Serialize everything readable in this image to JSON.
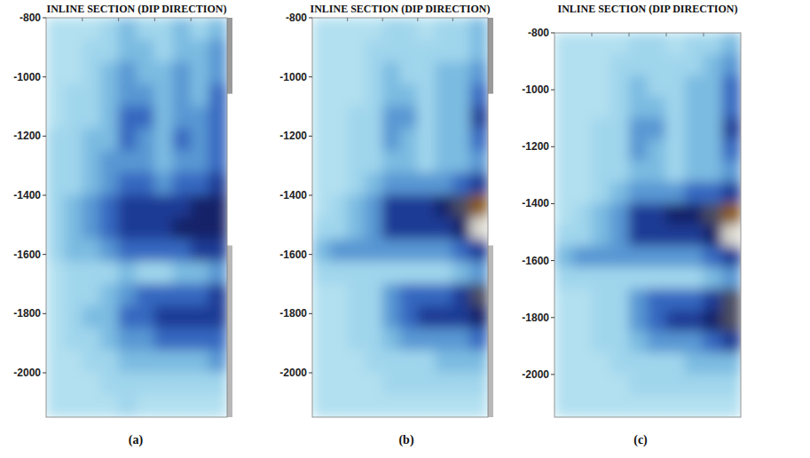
{
  "chart_data": [
    {
      "type": "heatmap",
      "title": "INLINE SECTION (DIP DIRECTION)",
      "panel_label": "(a)",
      "ylim": [
        -2150,
        -800
      ],
      "yticks": [
        -800,
        -1000,
        -1200,
        -1400,
        -1600,
        -1800,
        -2000
      ],
      "tick_labels": "y",
      "zlim": [
        0,
        10
      ],
      "y_edges": [
        -800,
        -875,
        -950,
        -1025,
        -1100,
        -1175,
        -1250,
        -1325,
        -1400,
        -1475,
        -1550,
        -1625,
        -1700,
        -1775,
        -1850,
        -1925,
        -2000,
        -2075,
        -2150
      ],
      "cells": [
        [
          1,
          1,
          1,
          2,
          3,
          2,
          2,
          3,
          2,
          3
        ],
        [
          1,
          1,
          2,
          2,
          3,
          3,
          2,
          3,
          3,
          4
        ],
        [
          1,
          1,
          2,
          3,
          4,
          3,
          3,
          4,
          3,
          4
        ],
        [
          1,
          2,
          2,
          3,
          4,
          4,
          3,
          4,
          3,
          5
        ],
        [
          1,
          2,
          2,
          3,
          5,
          5,
          3,
          4,
          4,
          5
        ],
        [
          2,
          2,
          3,
          3,
          5,
          4,
          3,
          5,
          4,
          5
        ],
        [
          2,
          2,
          3,
          4,
          4,
          4,
          3,
          4,
          4,
          5
        ],
        [
          2,
          2,
          3,
          4,
          5,
          5,
          4,
          5,
          5,
          6
        ],
        [
          2,
          3,
          4,
          5,
          6,
          6,
          6,
          6,
          7,
          7
        ],
        [
          2,
          3,
          4,
          5,
          6,
          6,
          6,
          7,
          7,
          7
        ],
        [
          2,
          3,
          3,
          4,
          5,
          5,
          5,
          5,
          6,
          6
        ],
        [
          1,
          2,
          2,
          2,
          3,
          2,
          2,
          3,
          3,
          4
        ],
        [
          1,
          2,
          2,
          3,
          4,
          5,
          5,
          5,
          5,
          6
        ],
        [
          1,
          2,
          3,
          3,
          5,
          5,
          6,
          6,
          6,
          6
        ],
        [
          1,
          2,
          2,
          3,
          4,
          4,
          5,
          5,
          5,
          5
        ],
        [
          1,
          1,
          2,
          2,
          3,
          3,
          3,
          3,
          3,
          4
        ],
        [
          1,
          1,
          1,
          2,
          2,
          2,
          2,
          2,
          2,
          2
        ],
        [
          1,
          1,
          1,
          1,
          2,
          1,
          1,
          1,
          1,
          1
        ]
      ]
    },
    {
      "type": "heatmap",
      "title": "INLINE SECTION (DIP DIRECTION)",
      "panel_label": "(b)",
      "ylim": [
        -2150,
        -800
      ],
      "yticks": [
        -800,
        -1000,
        -1200,
        -1400,
        -1600,
        -1800,
        -2000
      ],
      "tick_labels": "y",
      "zlim": [
        0,
        10
      ],
      "y_edges": [
        -800,
        -875,
        -950,
        -1025,
        -1100,
        -1175,
        -1250,
        -1325,
        -1400,
        -1475,
        -1550,
        -1625,
        -1700,
        -1775,
        -1850,
        -1925,
        -2000,
        -2075,
        -2150
      ],
      "cells": [
        [
          1,
          1,
          1,
          1,
          2,
          2,
          1,
          2,
          2,
          3
        ],
        [
          1,
          1,
          1,
          2,
          2,
          2,
          2,
          2,
          2,
          3
        ],
        [
          1,
          1,
          1,
          2,
          3,
          2,
          2,
          3,
          3,
          4
        ],
        [
          1,
          1,
          1,
          2,
          3,
          3,
          2,
          3,
          3,
          5
        ],
        [
          1,
          1,
          2,
          2,
          4,
          4,
          2,
          3,
          3,
          6
        ],
        [
          1,
          1,
          2,
          2,
          4,
          3,
          2,
          3,
          3,
          5
        ],
        [
          1,
          1,
          2,
          2,
          3,
          3,
          2,
          3,
          3,
          4
        ],
        [
          1,
          1,
          2,
          3,
          4,
          4,
          4,
          4,
          5,
          6
        ],
        [
          1,
          2,
          3,
          4,
          6,
          6,
          6,
          7,
          8,
          10
        ],
        [
          2,
          2,
          3,
          4,
          6,
          6,
          6,
          6,
          7,
          9
        ],
        [
          3,
          4,
          4,
          4,
          4,
          4,
          4,
          4,
          5,
          6
        ],
        [
          2,
          2,
          2,
          2,
          2,
          2,
          2,
          2,
          3,
          4
        ],
        [
          1,
          1,
          2,
          2,
          4,
          5,
          5,
          5,
          6,
          8
        ],
        [
          1,
          1,
          2,
          2,
          4,
          5,
          6,
          6,
          6,
          7
        ],
        [
          1,
          1,
          2,
          2,
          3,
          4,
          4,
          4,
          4,
          5
        ],
        [
          1,
          1,
          1,
          2,
          2,
          2,
          2,
          3,
          3,
          3
        ],
        [
          1,
          1,
          1,
          1,
          2,
          2,
          2,
          2,
          2,
          2
        ],
        [
          1,
          1,
          1,
          1,
          1,
          1,
          1,
          1,
          1,
          1
        ]
      ]
    },
    {
      "type": "heatmap",
      "title": "INLINE SECTION (DIP DIRECTION)",
      "panel_label": "(c)",
      "ylim": [
        -2150,
        -800
      ],
      "yticks": [
        -800,
        -1000,
        -1200,
        -1400,
        -1600,
        -1800,
        -2000
      ],
      "tick_labels": "y",
      "zlim": [
        0,
        10
      ],
      "y_edges": [
        -800,
        -875,
        -950,
        -1025,
        -1100,
        -1175,
        -1250,
        -1325,
        -1400,
        -1475,
        -1550,
        -1625,
        -1700,
        -1775,
        -1850,
        -1925,
        -2000,
        -2075,
        -2150
      ],
      "cells": [
        [
          1,
          1,
          1,
          1,
          2,
          2,
          1,
          2,
          2,
          3
        ],
        [
          1,
          1,
          1,
          2,
          2,
          2,
          2,
          2,
          3,
          4
        ],
        [
          1,
          1,
          1,
          2,
          3,
          2,
          2,
          3,
          3,
          5
        ],
        [
          1,
          1,
          1,
          2,
          3,
          3,
          2,
          3,
          3,
          5
        ],
        [
          1,
          1,
          2,
          2,
          4,
          4,
          2,
          3,
          3,
          6
        ],
        [
          1,
          1,
          2,
          2,
          4,
          3,
          2,
          3,
          3,
          5
        ],
        [
          1,
          1,
          2,
          2,
          3,
          3,
          2,
          3,
          3,
          4
        ],
        [
          1,
          1,
          2,
          3,
          4,
          4,
          4,
          5,
          5,
          6
        ],
        [
          1,
          2,
          3,
          4,
          6,
          6,
          7,
          7,
          8,
          10
        ],
        [
          2,
          2,
          3,
          4,
          6,
          6,
          6,
          6,
          7,
          9
        ],
        [
          3,
          4,
          4,
          4,
          4,
          4,
          4,
          4,
          5,
          6
        ],
        [
          2,
          2,
          2,
          2,
          2,
          2,
          2,
          2,
          3,
          4
        ],
        [
          1,
          1,
          2,
          2,
          4,
          5,
          5,
          5,
          6,
          8
        ],
        [
          1,
          1,
          2,
          2,
          4,
          5,
          6,
          6,
          7,
          8
        ],
        [
          1,
          1,
          2,
          2,
          3,
          4,
          4,
          4,
          5,
          6
        ],
        [
          1,
          1,
          1,
          2,
          2,
          2,
          2,
          3,
          3,
          3
        ],
        [
          1,
          1,
          1,
          1,
          2,
          2,
          2,
          2,
          2,
          2
        ],
        [
          1,
          1,
          1,
          1,
          1,
          1,
          1,
          1,
          1,
          1
        ]
      ]
    }
  ]
}
